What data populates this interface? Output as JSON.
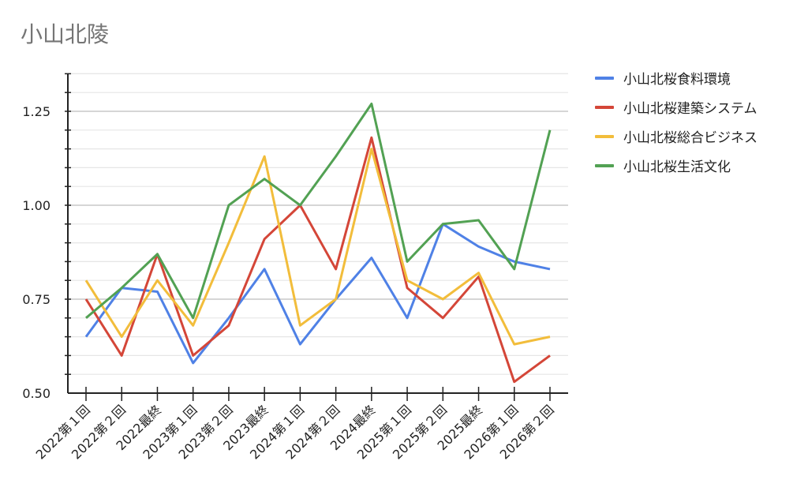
{
  "chart_data": {
    "type": "line",
    "title": "小山北陵",
    "xlabel": "",
    "ylabel": "",
    "ylim": [
      0.5,
      1.35
    ],
    "yticks": [
      "0.50",
      "0.75",
      "1.00",
      "1.25"
    ],
    "grid": true,
    "legend_position": "right",
    "categories": [
      "2022第１回",
      "2022第２回",
      "2022最終",
      "2023第１回",
      "2023第２回",
      "2023最終",
      "2024第１回",
      "2024第２回",
      "2024最終",
      "2025第１回",
      "2025第２回",
      "2025最終",
      "2026第１回",
      "2026第２回"
    ],
    "series": [
      {
        "name": "小山北桜食料環境",
        "color": "#4f81e6",
        "values": [
          0.65,
          0.78,
          0.77,
          0.58,
          0.7,
          0.83,
          0.63,
          0.75,
          0.86,
          0.7,
          0.95,
          0.89,
          0.85,
          0.83
        ]
      },
      {
        "name": "小山北桜建築システム",
        "color": "#d44638",
        "values": [
          0.75,
          0.6,
          0.87,
          0.6,
          0.68,
          0.91,
          1.0,
          0.83,
          1.18,
          0.78,
          0.7,
          0.81,
          0.53,
          0.6
        ]
      },
      {
        "name": "小山北桜総合ビジネス",
        "color": "#f2bd3b",
        "values": [
          0.8,
          0.65,
          0.8,
          0.68,
          0.9,
          1.13,
          0.68,
          0.75,
          1.15,
          0.8,
          0.75,
          0.82,
          0.63,
          0.65
        ]
      },
      {
        "name": "小山北桜生活文化",
        "color": "#52a153",
        "values": [
          0.7,
          0.78,
          0.87,
          0.7,
          1.0,
          1.07,
          1.0,
          1.13,
          1.27,
          0.85,
          0.95,
          0.96,
          0.83,
          1.2
        ]
      }
    ]
  }
}
